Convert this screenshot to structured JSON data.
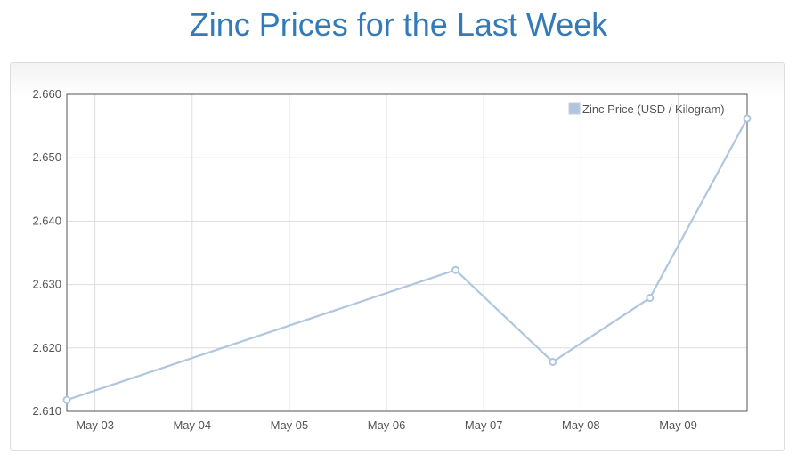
{
  "page": {
    "title": "Zinc Prices for the Last Week"
  },
  "chart_data": {
    "type": "line",
    "title": "Zinc Prices for the Last Week",
    "xlabel": "",
    "ylabel": "",
    "x_tick_labels": [
      "May 03",
      "May 04",
      "May 05",
      "May 06",
      "May 07",
      "May 08",
      "May 09"
    ],
    "y_tick_labels": [
      "2.610",
      "2.620",
      "2.630",
      "2.640",
      "2.650",
      "2.660"
    ],
    "ylim": [
      2.61,
      2.66
    ],
    "xlim_days": [
      0,
      7.0
    ],
    "grid": true,
    "legend_position": "top-right",
    "series": [
      {
        "name": "Zinc Price (USD / Kilogram)",
        "color": "#afc6de",
        "x_days": [
          0,
          4.0,
          5.0,
          6.0,
          7.0
        ],
        "values": [
          2.6118,
          2.6323,
          2.6178,
          2.6279,
          2.6562
        ]
      }
    ]
  }
}
